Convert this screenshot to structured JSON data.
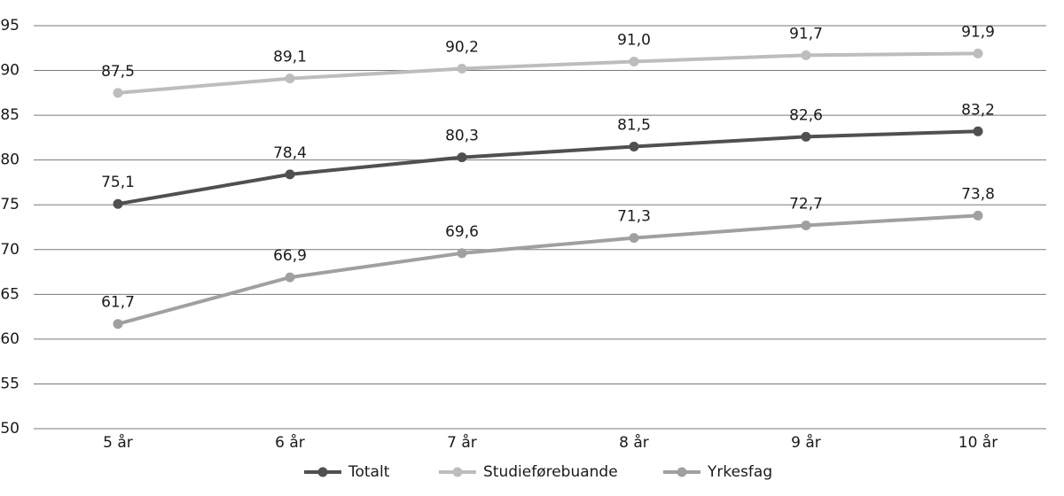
{
  "chart_data": {
    "type": "line",
    "categories": [
      "5 år",
      "6 år",
      "7 år",
      "8 år",
      "9 år",
      "10 år"
    ],
    "series": [
      {
        "name": "Totalt",
        "color": "#505050",
        "values": [
          75.1,
          78.4,
          80.3,
          81.5,
          82.6,
          83.2
        ],
        "value_labels": [
          "75,1",
          "78,4",
          "80,3",
          "81,5",
          "82,6",
          "83,2"
        ]
      },
      {
        "name": "Studieførebuande",
        "color": "#bdbdbd",
        "values": [
          87.5,
          89.1,
          90.2,
          91.0,
          91.7,
          91.9
        ],
        "value_labels": [
          "87,5",
          "89,1",
          "90,2",
          "91,0",
          "91,7",
          "91,9"
        ]
      },
      {
        "name": "Yrkesfag",
        "color": "#a0a0a0",
        "values": [
          61.7,
          66.9,
          69.6,
          71.3,
          72.7,
          73.8
        ],
        "value_labels": [
          "61,7",
          "66,9",
          "69,6",
          "71,3",
          "72,7",
          "73,8"
        ]
      }
    ],
    "ylim": [
      50,
      95
    ],
    "yticks": [
      50,
      55,
      60,
      65,
      70,
      75,
      80,
      85,
      90,
      95
    ],
    "grid": true,
    "legend": "bottom"
  }
}
